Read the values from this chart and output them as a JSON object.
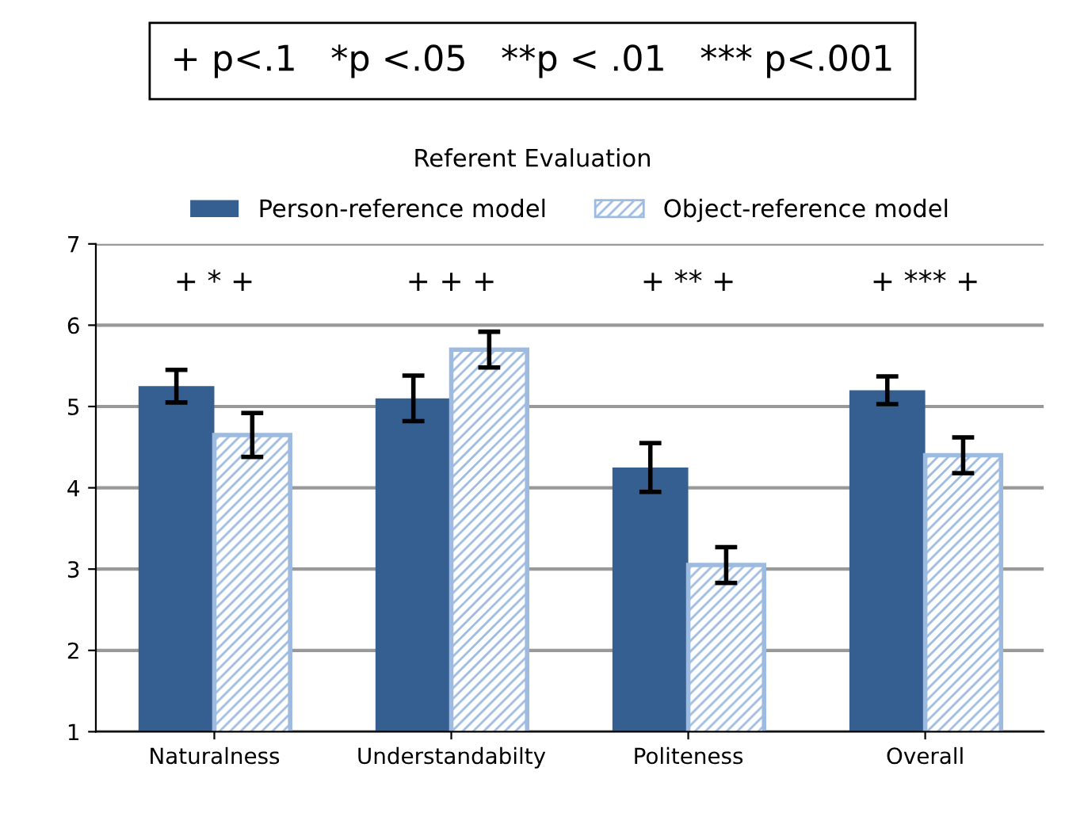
{
  "chart_data": {
    "type": "bar",
    "title": "Referent Evaluation",
    "categories": [
      "Naturalness",
      "Understandabilty",
      "Politeness",
      "Overall"
    ],
    "series": [
      {
        "name": "Person-reference model",
        "color": "#365f91",
        "values": [
          5.25,
          5.1,
          4.25,
          5.2
        ],
        "errors": [
          0.2,
          0.28,
          0.3,
          0.17
        ]
      },
      {
        "name": "Object-reference model",
        "color": "#9dbbe0",
        "values": [
          4.65,
          5.7,
          3.05,
          4.4
        ],
        "errors": [
          0.27,
          0.22,
          0.22,
          0.22
        ]
      }
    ],
    "ylim": [
      1,
      7
    ],
    "yticks": [
      1,
      2,
      3,
      4,
      5,
      6,
      7
    ],
    "grid": "y",
    "legend": "top",
    "annotations": [
      "+ p<.1   *p <.05   **p < .01   *** p<.001",
      "+ * +",
      "+ + +",
      "+ ** +",
      "+ *** +"
    ]
  }
}
